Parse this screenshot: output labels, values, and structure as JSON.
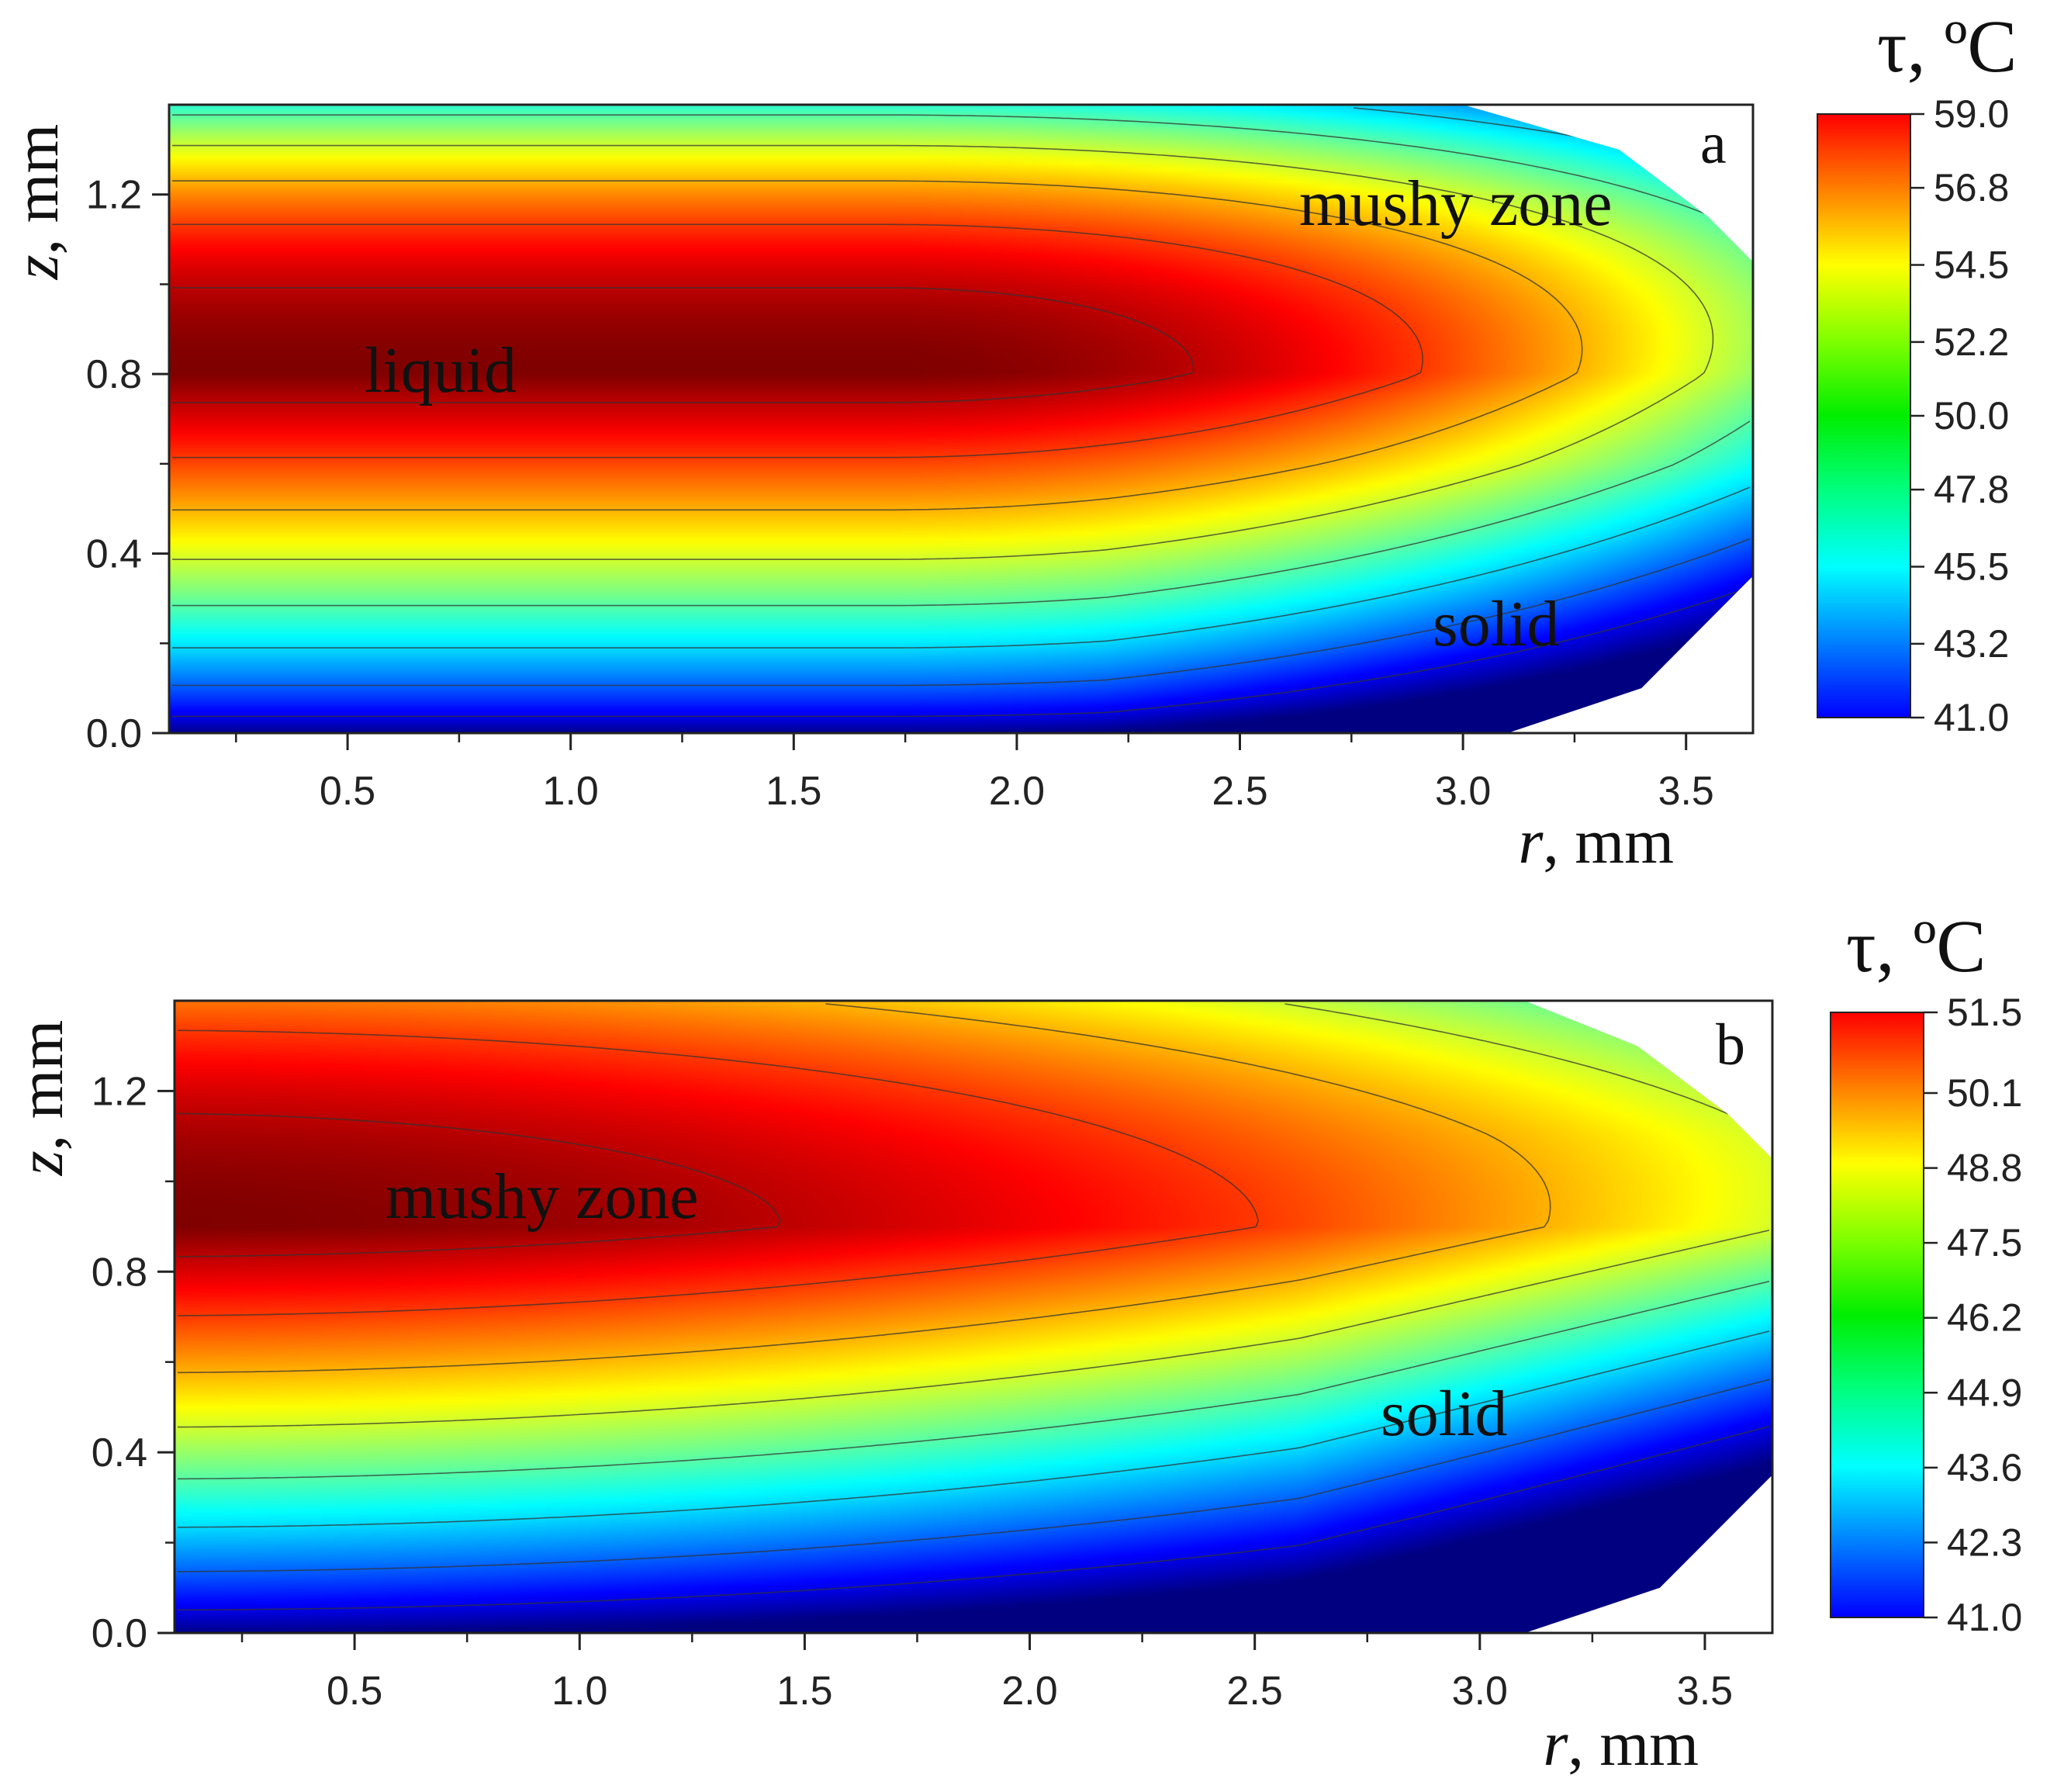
{
  "chart_data": [
    {
      "type": "heatmap",
      "panel": "a",
      "title": "",
      "xlabel_var": "r",
      "xlabel_unit": ", mm",
      "ylabel_var": "z",
      "ylabel_unit": ", mm",
      "xlim": [
        0.1,
        3.65
      ],
      "ylim": [
        0.0,
        1.4
      ],
      "xticks": [
        "0.5",
        "1.0",
        "1.5",
        "2.0",
        "2.5",
        "3.0",
        "3.5"
      ],
      "xtick_values": [
        0.5,
        1.0,
        1.5,
        2.0,
        2.5,
        3.0,
        3.5
      ],
      "yticks": [
        "0.0",
        "0.4",
        "0.8",
        "1.2"
      ],
      "ytick_values": [
        0.0,
        0.4,
        0.8,
        1.2
      ],
      "colorbar": {
        "title_symbol": "τ",
        "title_unit": ", ºC",
        "min": 41.0,
        "max": 59.0,
        "ticks": [
          "59.0",
          "56.8",
          "54.5",
          "52.2",
          "50.0",
          "47.8",
          "45.5",
          "43.2",
          "41.0"
        ],
        "tick_values": [
          59.0,
          56.8,
          54.5,
          52.2,
          50.0,
          47.8,
          45.5,
          43.2,
          41.0
        ]
      },
      "field": {
        "z_center": 0.8,
        "peak_r": 1.7,
        "peak_temp": 59.0,
        "edge_temp_top": 48.5,
        "edge_temp_bottom": 41.0,
        "domain_boundary": [
          [
            3.0,
            1.4
          ],
          [
            3.35,
            1.3
          ],
          [
            3.55,
            1.15
          ],
          [
            3.65,
            1.05
          ],
          [
            3.65,
            0.35
          ],
          [
            3.4,
            0.1
          ],
          [
            3.1,
            0.0
          ]
        ]
      },
      "annotations": [
        {
          "text": "liquid",
          "r": 0.55,
          "z": 0.8
        },
        {
          "text": "mushy zone",
          "r": 2.75,
          "z": 1.2
        },
        {
          "text": "solid",
          "r": 3.05,
          "z": 0.23
        }
      ]
    },
    {
      "type": "heatmap",
      "panel": "b",
      "title": "",
      "xlabel_var": "r",
      "xlabel_unit": ", mm",
      "ylabel_var": "z",
      "ylabel_unit": ", mm",
      "xlim": [
        0.1,
        3.65
      ],
      "ylim": [
        0.0,
        1.4
      ],
      "xticks": [
        "0.5",
        "1.0",
        "1.5",
        "2.0",
        "2.5",
        "3.0",
        "3.5"
      ],
      "xtick_values": [
        0.5,
        1.0,
        1.5,
        2.0,
        2.5,
        3.0,
        3.5
      ],
      "yticks": [
        "0.0",
        "0.4",
        "0.8",
        "1.2"
      ],
      "ytick_values": [
        0.0,
        0.4,
        0.8,
        1.2
      ],
      "colorbar": {
        "title_symbol": "τ",
        "title_unit": ", ºC",
        "min": 41.0,
        "max": 51.5,
        "ticks": [
          "51.5",
          "50.1",
          "48.8",
          "47.5",
          "46.2",
          "44.9",
          "43.6",
          "42.3",
          "41.0"
        ],
        "tick_values": [
          51.5,
          50.1,
          48.8,
          47.5,
          46.2,
          44.9,
          43.6,
          42.3,
          41.0
        ]
      },
      "field": {
        "z_center": 0.9,
        "peak_r": 0.3,
        "peak_temp": 51.5,
        "edge_temp_top": 49.0,
        "edge_temp_bottom": 41.0,
        "domain_boundary": [
          [
            3.1,
            1.4
          ],
          [
            3.35,
            1.3
          ],
          [
            3.55,
            1.15
          ],
          [
            3.65,
            1.05
          ],
          [
            3.65,
            0.35
          ],
          [
            3.4,
            0.1
          ],
          [
            3.1,
            0.0
          ]
        ]
      },
      "annotations": [
        {
          "text": "mushy zone",
          "r": 0.58,
          "z": 0.9
        },
        {
          "text": "solid",
          "r": 2.77,
          "z": 0.45
        }
      ]
    }
  ]
}
